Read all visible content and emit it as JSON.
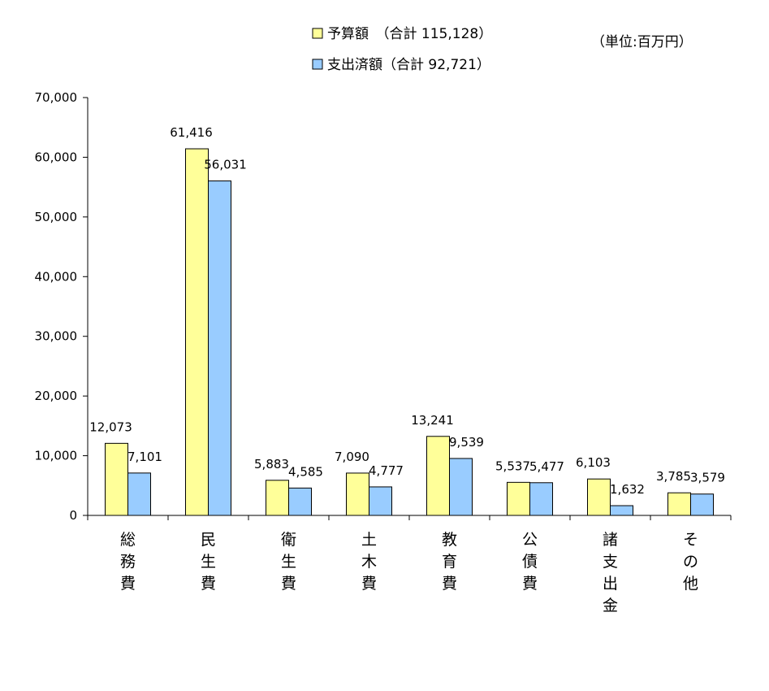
{
  "chart_data": {
    "type": "bar",
    "unit_label": "（単位:百万円）",
    "categories": [
      "総務費",
      "民生費",
      "衛生費",
      "土木費",
      "教育費",
      "公債費",
      "諸支出金",
      "その他"
    ],
    "series": [
      {
        "name": "予算額　（合計 115,128）",
        "color": "#FFFF99",
        "values": [
          12073,
          61416,
          5883,
          7090,
          13241,
          5537,
          6103,
          3785
        ],
        "value_labels": [
          "12,073",
          "61,416",
          "5,883",
          "7,090",
          "13,241",
          "5,537",
          "6,103",
          "3,785"
        ]
      },
      {
        "name": "支出済額（合計 92,721）",
        "color": "#99CCFF",
        "values": [
          7101,
          56031,
          4585,
          4777,
          9539,
          5477,
          1632,
          3579
        ],
        "value_labels": [
          "7,101",
          "56,031",
          "4,585",
          "4,777",
          "9,539",
          "5,477",
          "1,632",
          "3,579"
        ]
      }
    ],
    "ylim": [
      0,
      70000
    ],
    "y_ticks": [
      0,
      10000,
      20000,
      30000,
      40000,
      50000,
      60000,
      70000
    ],
    "y_tick_labels": [
      "0",
      "10,000",
      "20,000",
      "30,000",
      "40,000",
      "50,000",
      "60,000",
      "70,000"
    ],
    "legend_position": "top",
    "grid": false
  }
}
